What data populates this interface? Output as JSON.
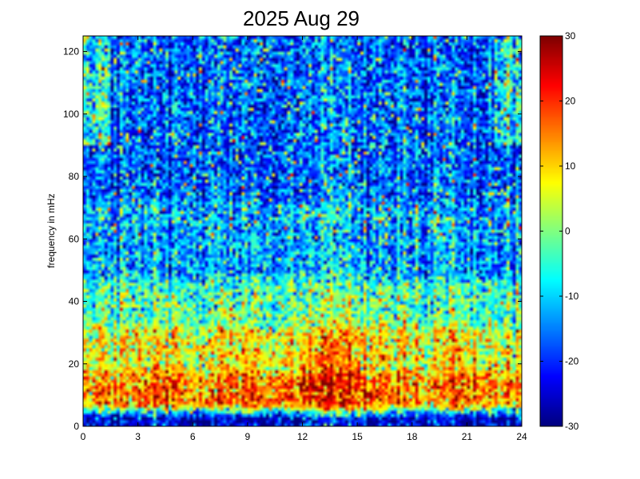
{
  "chart_data": {
    "type": "heatmap",
    "title": "2025 Aug 29",
    "xlabel": "",
    "ylabel": "frequency in mHz",
    "xlim": [
      0,
      24
    ],
    "ylim": [
      0,
      125
    ],
    "x_ticks": [
      "0",
      "3",
      "6",
      "9",
      "12",
      "15",
      "18",
      "21",
      "24"
    ],
    "y_ticks": [
      "0",
      "20",
      "40",
      "60",
      "80",
      "100",
      "120"
    ],
    "colorbar": {
      "colormap": "jet",
      "range": [
        -30,
        30
      ],
      "ticks": [
        "-30",
        "-20",
        "-10",
        "0",
        "10",
        "20",
        "30"
      ]
    },
    "grid_resolution": {
      "time_bins": 144,
      "freq_bins": 125
    },
    "intensity_profile": {
      "description": "approximate level (dB) by frequency band",
      "bands_mHz": [
        [
          0,
          3
        ],
        [
          3,
          15
        ],
        [
          15,
          30
        ],
        [
          30,
          45
        ],
        [
          45,
          70
        ],
        [
          70,
          125
        ]
      ],
      "mean_level": [
        -25,
        14,
        6,
        -3,
        -12,
        -17
      ]
    },
    "strong_periods_hours": [
      [
        11,
        17
      ],
      [
        20.3,
        21.3
      ],
      [
        8,
        10
      ],
      [
        3.5,
        5.5
      ]
    ]
  }
}
